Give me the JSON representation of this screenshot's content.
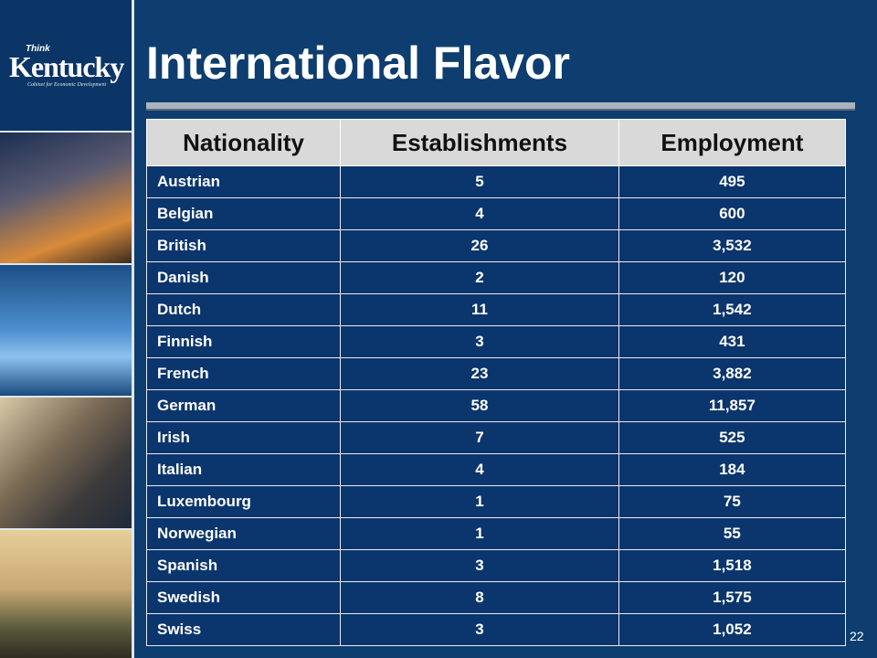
{
  "logo": {
    "small": "Think",
    "name": "Kentucky",
    "tagline": "Cabinet for Economic Development"
  },
  "title": "International Flavor",
  "table": {
    "header": [
      "Nationality",
      "Establishments",
      "Employment"
    ],
    "rows": [
      [
        "Austrian",
        "5",
        "495"
      ],
      [
        "Belgian",
        "4",
        "600"
      ],
      [
        "British",
        "26",
        "3,532"
      ],
      [
        "Danish",
        "2",
        "120"
      ],
      [
        "Dutch",
        "11",
        "1,542"
      ],
      [
        "Finnish",
        "3",
        "431"
      ],
      [
        "French",
        "23",
        "3,882"
      ],
      [
        "German",
        "58",
        "11,857"
      ],
      [
        "Irish",
        "7",
        "525"
      ],
      [
        "Italian",
        "4",
        "184"
      ],
      [
        "Luxembourg",
        "1",
        "75"
      ],
      [
        "Norwegian",
        "1",
        "55"
      ],
      [
        "Spanish",
        "3",
        "1,518"
      ],
      [
        "Swedish",
        "8",
        "1,575"
      ],
      [
        "Swiss",
        "3",
        "1,052"
      ]
    ]
  },
  "page_number": "22"
}
